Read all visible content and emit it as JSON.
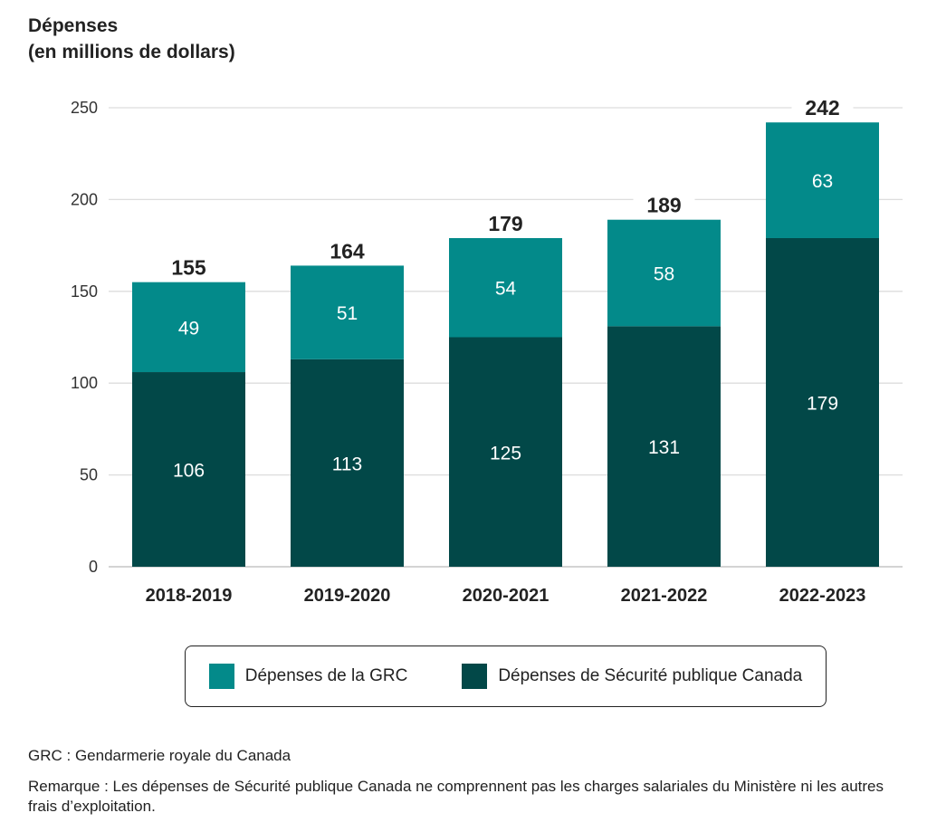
{
  "chart_data": {
    "type": "bar",
    "stacked": true,
    "title_lines": [
      "Dépenses",
      "(en millions de dollars)"
    ],
    "categories": [
      "2018-2019",
      "2019-2020",
      "2020-2021",
      "2021-2022",
      "2022-2023"
    ],
    "series": [
      {
        "name": "Dépenses de Sécurité publique Canada",
        "values": [
          106,
          113,
          125,
          131,
          179
        ],
        "color": "#024848"
      },
      {
        "name": "Dépenses de la GRC",
        "values": [
          49,
          51,
          54,
          58,
          63
        ],
        "color": "#038a8a"
      }
    ],
    "totals": [
      155,
      164,
      179,
      189,
      242
    ],
    "ylim": [
      0,
      250
    ],
    "yticks": [
      0,
      50,
      100,
      150,
      200,
      250
    ],
    "grid": true,
    "legend_placement": "bottom",
    "legend_order": [
      "Dépenses de la GRC",
      "Dépenses de Sécurité publique Canada"
    ]
  },
  "notes": {
    "abbreviation": "GRC : Gendarmerie royale du Canada",
    "remark": "Remarque : Les dépenses de Sécurité publique Canada ne comprennent pas les charges salariales du Ministère ni les autres frais d’exploitation."
  }
}
